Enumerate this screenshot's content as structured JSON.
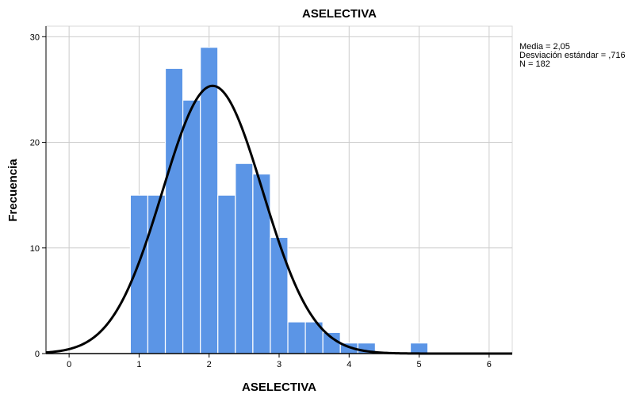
{
  "chart_data": {
    "type": "bar",
    "title": "ASELECTIVA",
    "xlabel": "ASELECTIVA",
    "ylabel": "Frecuencia",
    "xlim": [
      -0.33,
      6.33
    ],
    "ylim": [
      0,
      31
    ],
    "x_ticks": [
      "0",
      "1",
      "2",
      "3",
      "4",
      "5",
      "6"
    ],
    "y_ticks": [
      "0",
      "10",
      "20",
      "30"
    ],
    "grid": true,
    "bar_color": "#5b95e6",
    "bin_width": 0.25,
    "bins": [
      {
        "start": 0.875,
        "value": 15
      },
      {
        "start": 1.125,
        "value": 15
      },
      {
        "start": 1.375,
        "value": 27
      },
      {
        "start": 1.625,
        "value": 24
      },
      {
        "start": 1.875,
        "value": 29
      },
      {
        "start": 2.125,
        "value": 15
      },
      {
        "start": 2.375,
        "value": 18
      },
      {
        "start": 2.625,
        "value": 17
      },
      {
        "start": 2.875,
        "value": 11
      },
      {
        "start": 3.125,
        "value": 3
      },
      {
        "start": 3.375,
        "value": 3
      },
      {
        "start": 3.625,
        "value": 2
      },
      {
        "start": 3.875,
        "value": 1
      },
      {
        "start": 4.125,
        "value": 1
      },
      {
        "start": 4.375,
        "value": 0
      },
      {
        "start": 4.625,
        "value": 0
      },
      {
        "start": 4.875,
        "value": 1
      }
    ],
    "normal_curve": {
      "mean": 2.05,
      "sd": 0.716,
      "n": 182,
      "color": "#000000"
    },
    "stats": [
      "Media = 2,05",
      "Desviación estándar = ,716",
      "N = 182"
    ]
  }
}
